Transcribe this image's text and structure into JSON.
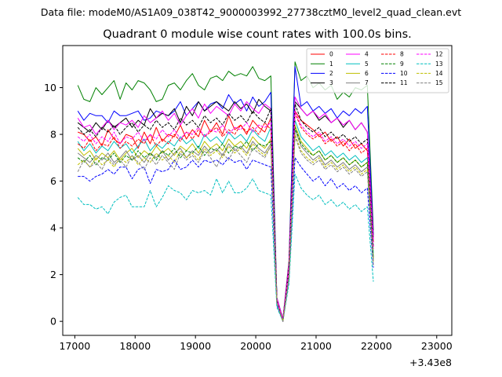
{
  "chart_data": {
    "type": "line",
    "suptitle": "Data file: modeM0/AS1A09_038T42_9000003992_27738cztM0_level2_quad_clean.evt",
    "title": "Quadrant 0 module wise count rates with 100.0s bins.",
    "xlabel": "",
    "ylabel": "",
    "x_offset_label": "+3.43e8",
    "xlim": [
      16800,
      23250
    ],
    "ylim": [
      -0.6,
      11.8
    ],
    "x_ticks": [
      17000,
      18000,
      19000,
      20000,
      21000,
      22000,
      23000
    ],
    "x_tick_labels": [
      "17000",
      "18000",
      "19000",
      "20000",
      "21000",
      "22000",
      "23000"
    ],
    "y_ticks": [
      0,
      2,
      4,
      6,
      8,
      10
    ],
    "y_tick_labels": [
      "0",
      "2",
      "4",
      "6",
      "8",
      "10"
    ],
    "legend_position": "top-right",
    "x_start": 17050,
    "x_step": 100,
    "series": [
      {
        "name": "0",
        "color": "#ff0000",
        "dash": "solid",
        "values": [
          8.1,
          8.0,
          7.7,
          7.9,
          7.5,
          8.2,
          7.8,
          7.6,
          8.0,
          7.9,
          7.4,
          8.1,
          7.6,
          8.3,
          7.7,
          8.0,
          7.9,
          8.4,
          7.8,
          8.2,
          7.9,
          8.6,
          8.1,
          8.5,
          8.0,
          8.8,
          8.2,
          8.4,
          8.0,
          8.6,
          8.3,
          8.1,
          8.7,
          0.9,
          0.0,
          2.2,
          9.0,
          8.6,
          8.4,
          8.2,
          7.9,
          8.1,
          7.7,
          7.9,
          7.5,
          7.8,
          7.4,
          7.6,
          7.3,
          3.4
        ]
      },
      {
        "name": "1",
        "color": "#008000",
        "dash": "solid",
        "values": [
          10.1,
          9.5,
          9.4,
          10.0,
          9.7,
          10.0,
          10.3,
          9.5,
          10.2,
          9.9,
          10.3,
          10.2,
          9.9,
          9.4,
          9.5,
          10.1,
          10.2,
          9.9,
          10.3,
          10.6,
          10.1,
          9.9,
          10.4,
          10.5,
          10.3,
          10.7,
          10.5,
          10.6,
          10.5,
          10.9,
          10.4,
          10.3,
          10.5,
          1.0,
          0.1,
          2.6,
          11.1,
          10.3,
          10.5,
          10.0,
          10.2,
          9.9,
          10.1,
          9.5,
          9.8,
          9.6,
          10.0,
          9.9,
          10.1,
          3.9
        ]
      },
      {
        "name": "2",
        "color": "#0000ff",
        "dash": "solid",
        "values": [
          9.0,
          8.6,
          8.9,
          8.8,
          8.8,
          8.5,
          9.0,
          8.8,
          8.8,
          8.9,
          9.0,
          8.6,
          8.7,
          9.0,
          8.9,
          8.8,
          9.0,
          9.4,
          8.8,
          9.1,
          9.4,
          9.0,
          9.3,
          9.4,
          9.1,
          9.7,
          9.3,
          9.5,
          9.0,
          9.6,
          9.2,
          9.4,
          9.8,
          1.0,
          0.1,
          2.4,
          10.9,
          9.2,
          9.4,
          9.0,
          9.2,
          8.9,
          9.1,
          8.7,
          9.0,
          8.8,
          9.1,
          8.9,
          9.2,
          3.7
        ]
      },
      {
        "name": "3",
        "color": "#000000",
        "dash": "solid",
        "values": [
          8.5,
          8.3,
          8.1,
          8.5,
          8.2,
          8.6,
          8.3,
          8.5,
          8.7,
          8.3,
          8.6,
          8.4,
          9.1,
          8.7,
          8.9,
          8.8,
          9.1,
          8.5,
          9.2,
          8.8,
          9.4,
          9.0,
          9.2,
          9.4,
          9.2,
          9.0,
          9.4,
          9.1,
          9.3,
          8.9,
          9.5,
          9.2,
          9.0,
          1.0,
          0.1,
          2.5,
          9.4,
          9.1,
          8.8,
          9.0,
          8.6,
          8.8,
          8.5,
          8.7,
          8.3,
          8.6,
          8.2,
          8.5,
          8.1,
          3.6
        ]
      },
      {
        "name": "4",
        "color": "#ff00ff",
        "dash": "solid",
        "values": [
          8.7,
          8.3,
          8.4,
          8.0,
          8.3,
          8.6,
          8.2,
          8.5,
          8.4,
          8.6,
          8.3,
          8.8,
          8.5,
          8.7,
          9.0,
          8.6,
          8.9,
          8.4,
          8.8,
          9.1,
          8.7,
          9.3,
          8.9,
          9.2,
          9.0,
          8.8,
          9.3,
          9.0,
          9.4,
          9.1,
          8.9,
          9.3,
          9.1,
          1.0,
          0.1,
          2.5,
          9.6,
          9.1,
          8.8,
          9.0,
          8.7,
          8.9,
          8.5,
          8.7,
          8.4,
          8.6,
          8.2,
          8.5,
          8.1,
          3.5
        ]
      },
      {
        "name": "5",
        "color": "#00bfbf",
        "dash": "solid",
        "values": [
          7.7,
          7.3,
          7.6,
          7.2,
          7.5,
          7.3,
          7.7,
          7.4,
          7.6,
          7.2,
          7.5,
          7.8,
          7.3,
          7.6,
          7.4,
          7.7,
          7.5,
          7.9,
          7.6,
          7.8,
          7.4,
          8.0,
          7.7,
          7.9,
          7.6,
          8.1,
          7.8,
          8.0,
          7.7,
          8.2,
          7.9,
          7.7,
          8.3,
          0.8,
          0.0,
          2.1,
          8.6,
          7.9,
          7.6,
          7.3,
          7.5,
          7.1,
          7.3,
          7.0,
          7.2,
          6.9,
          7.1,
          6.8,
          7.0,
          2.9
        ]
      },
      {
        "name": "6",
        "color": "#bfbf00",
        "dash": "solid",
        "values": [
          7.4,
          7.1,
          7.3,
          6.9,
          7.2,
          7.0,
          7.3,
          6.9,
          7.2,
          7.4,
          7.0,
          7.3,
          7.1,
          7.5,
          7.2,
          7.4,
          7.1,
          7.5,
          7.3,
          7.6,
          7.2,
          7.7,
          7.4,
          7.6,
          7.3,
          7.8,
          7.5,
          7.7,
          7.4,
          7.9,
          7.6,
          7.4,
          7.8,
          0.8,
          0.0,
          2.0,
          8.4,
          7.7,
          7.4,
          7.1,
          7.3,
          6.9,
          7.1,
          6.8,
          7.0,
          6.7,
          6.9,
          6.6,
          6.8,
          2.7
        ]
      },
      {
        "name": "7",
        "color": "#808080",
        "dash": "solid",
        "values": [
          7.2,
          7.0,
          6.8,
          7.1,
          6.9,
          7.2,
          6.8,
          7.0,
          7.3,
          6.9,
          7.1,
          6.8,
          7.2,
          7.0,
          7.3,
          6.9,
          7.2,
          7.4,
          7.0,
          7.3,
          7.1,
          7.5,
          7.2,
          7.4,
          7.1,
          7.6,
          7.3,
          7.5,
          7.2,
          7.7,
          7.4,
          7.2,
          7.6,
          0.8,
          0.0,
          2.0,
          8.2,
          7.5,
          7.2,
          6.9,
          7.1,
          6.7,
          6.9,
          6.6,
          6.8,
          6.5,
          6.7,
          6.4,
          6.6,
          2.6
        ]
      },
      {
        "name": "8",
        "color": "#ff0000",
        "dash": "dashed",
        "values": [
          7.6,
          7.4,
          7.8,
          7.3,
          7.6,
          7.5,
          7.9,
          7.4,
          7.7,
          7.5,
          7.8,
          7.6,
          8.0,
          7.5,
          7.8,
          7.6,
          8.0,
          7.7,
          8.1,
          7.8,
          8.2,
          7.9,
          8.1,
          8.3,
          7.9,
          8.2,
          8.0,
          8.4,
          8.1,
          8.3,
          8.0,
          8.5,
          8.2,
          0.9,
          0.0,
          2.2,
          8.9,
          8.3,
          8.0,
          7.8,
          8.0,
          7.6,
          7.8,
          7.5,
          7.7,
          7.3,
          7.6,
          7.2,
          7.4,
          3.1
        ]
      },
      {
        "name": "9",
        "color": "#008000",
        "dash": "dashed",
        "values": [
          7.0,
          6.8,
          7.1,
          6.7,
          7.0,
          6.9,
          7.2,
          6.8,
          7.1,
          6.9,
          7.3,
          7.0,
          7.2,
          6.9,
          7.3,
          7.1,
          7.4,
          7.0,
          7.3,
          7.2,
          7.5,
          7.1,
          7.4,
          7.3,
          7.6,
          7.2,
          7.5,
          7.4,
          7.7,
          7.3,
          7.6,
          7.5,
          7.7,
          0.8,
          0.0,
          2.0,
          8.3,
          7.6,
          7.3,
          7.1,
          7.3,
          6.9,
          7.1,
          6.8,
          7.0,
          6.7,
          6.9,
          6.6,
          6.8,
          2.7
        ]
      },
      {
        "name": "10",
        "color": "#0000ff",
        "dash": "dashed",
        "values": [
          6.2,
          6.2,
          6.0,
          6.2,
          6.3,
          6.5,
          6.3,
          6.6,
          6.6,
          6.1,
          6.5,
          6.6,
          5.9,
          6.5,
          6.4,
          6.5,
          6.9,
          6.5,
          6.6,
          6.9,
          6.6,
          6.9,
          6.8,
          6.9,
          6.7,
          7.0,
          6.8,
          6.9,
          6.5,
          6.9,
          6.8,
          6.7,
          6.6,
          0.7,
          0.0,
          1.8,
          7.0,
          6.6,
          6.3,
          6.0,
          6.2,
          5.8,
          6.1,
          5.7,
          5.9,
          5.6,
          5.8,
          5.5,
          5.7,
          2.3
        ]
      },
      {
        "name": "11",
        "color": "#000000",
        "dash": "dashed",
        "values": [
          8.3,
          8.0,
          8.2,
          7.9,
          8.3,
          8.1,
          8.4,
          8.0,
          8.3,
          8.5,
          8.1,
          8.4,
          8.2,
          8.6,
          8.3,
          8.5,
          8.2,
          8.7,
          8.4,
          8.6,
          8.3,
          8.8,
          8.5,
          8.7,
          8.4,
          8.9,
          8.6,
          8.8,
          8.5,
          9.0,
          8.7,
          8.5,
          9.1,
          0.9,
          0.0,
          2.3,
          9.3,
          8.6,
          8.3,
          8.1,
          8.3,
          7.9,
          8.1,
          7.8,
          8.0,
          7.7,
          7.9,
          7.6,
          7.8,
          3.2
        ]
      },
      {
        "name": "12",
        "color": "#ff00ff",
        "dash": "dashed",
        "values": [
          7.9,
          7.7,
          8.0,
          7.6,
          7.9,
          7.7,
          8.1,
          7.6,
          7.9,
          7.8,
          8.1,
          7.7,
          8.0,
          7.8,
          8.2,
          7.9,
          8.2,
          7.8,
          8.1,
          8.0,
          8.3,
          7.9,
          8.2,
          8.1,
          8.4,
          8.0,
          8.3,
          8.2,
          8.5,
          8.1,
          8.4,
          8.3,
          8.5,
          0.9,
          0.0,
          2.2,
          9.0,
          8.4,
          8.1,
          7.9,
          8.1,
          7.7,
          7.9,
          7.6,
          7.8,
          7.5,
          7.7,
          7.4,
          7.6,
          3.1
        ]
      },
      {
        "name": "13",
        "color": "#00bfbf",
        "dash": "dashed",
        "values": [
          5.3,
          5.0,
          5.0,
          4.8,
          4.9,
          4.6,
          5.1,
          5.3,
          5.4,
          4.9,
          4.9,
          4.9,
          5.6,
          4.9,
          5.3,
          5.8,
          5.6,
          5.5,
          5.2,
          5.6,
          5.5,
          5.6,
          5.4,
          6.1,
          5.5,
          6.0,
          5.5,
          5.5,
          5.7,
          6.1,
          5.6,
          5.5,
          5.4,
          0.6,
          0.0,
          1.6,
          6.3,
          5.7,
          5.4,
          5.2,
          5.4,
          5.0,
          5.2,
          4.9,
          5.1,
          4.8,
          5.0,
          4.7,
          4.9,
          1.7
        ]
      },
      {
        "name": "14",
        "color": "#bfbf00",
        "dash": "dashed",
        "values": [
          6.7,
          6.9,
          6.6,
          7.0,
          6.7,
          6.9,
          6.6,
          7.0,
          6.8,
          7.1,
          6.7,
          7.0,
          6.8,
          7.2,
          6.9,
          7.1,
          6.8,
          7.3,
          7.0,
          7.2,
          6.9,
          7.4,
          7.1,
          7.3,
          7.0,
          7.5,
          7.2,
          7.4,
          7.1,
          7.6,
          7.3,
          7.1,
          7.5,
          0.8,
          0.0,
          1.9,
          8.0,
          7.3,
          7.0,
          6.8,
          7.0,
          6.6,
          6.8,
          6.5,
          6.7,
          6.4,
          6.6,
          6.3,
          6.5,
          2.5
        ]
      },
      {
        "name": "15",
        "color": "#808080",
        "dash": "dashed",
        "values": [
          6.4,
          6.9,
          6.6,
          6.8,
          6.5,
          7.0,
          6.7,
          6.9,
          6.6,
          7.1,
          6.8,
          6.5,
          7.0,
          6.7,
          7.1,
          6.8,
          6.5,
          7.2,
          6.9,
          7.1,
          6.8,
          7.3,
          7.0,
          6.6,
          7.2,
          6.9,
          7.4,
          7.1,
          6.8,
          7.4,
          7.2,
          7.0,
          7.5,
          0.8,
          0.0,
          1.9,
          7.9,
          7.2,
          6.9,
          6.7,
          6.9,
          6.5,
          6.7,
          6.4,
          6.6,
          6.3,
          6.5,
          6.2,
          6.4,
          2.4
        ]
      }
    ]
  }
}
